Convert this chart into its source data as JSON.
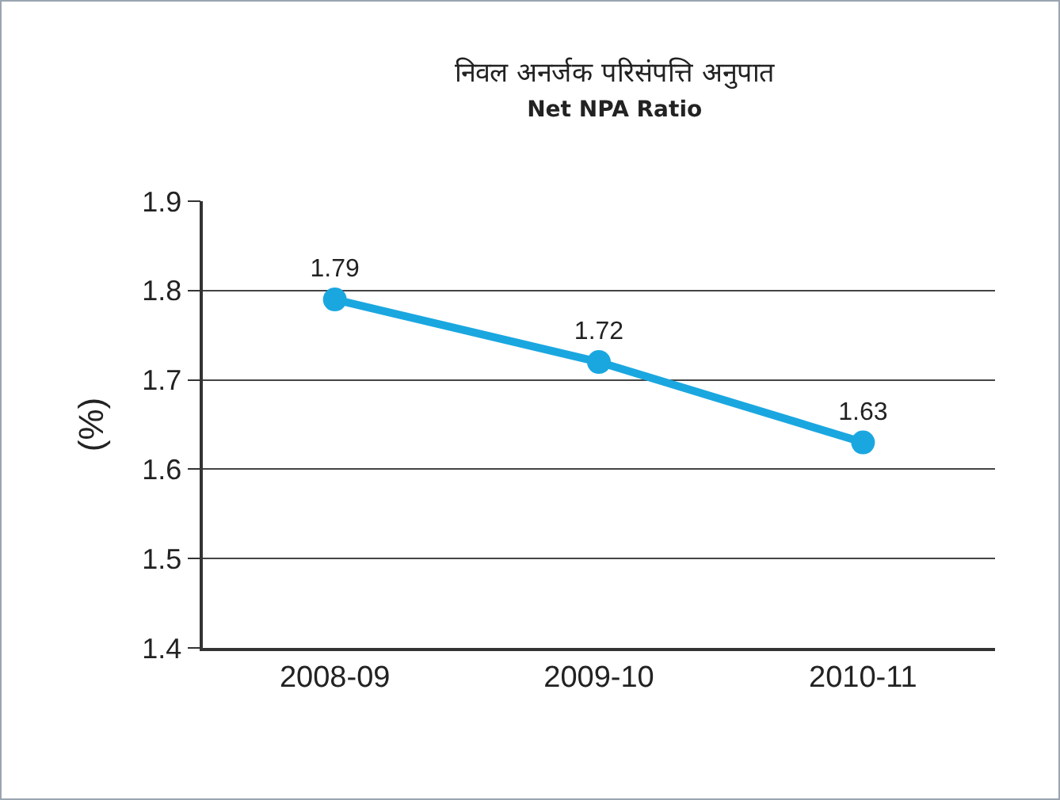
{
  "chart_data": {
    "type": "line",
    "title": "निवल अनर्जक परिसंपत्ति अनुपात",
    "subtitle": "Net NPA Ratio",
    "ylabel": "(%)",
    "categories": [
      "2008-09",
      "2009-10",
      "2010-11"
    ],
    "series": [
      {
        "color": "#1aa7e0",
        "values": [
          1.79,
          1.72,
          1.63
        ]
      }
    ],
    "ylim": [
      1.4,
      1.9
    ],
    "yticks": [
      1.4,
      1.5,
      1.6,
      1.7,
      1.8,
      1.9
    ],
    "grid": "y",
    "legend": false,
    "marker": "circle",
    "line_style": "solid",
    "data_labels": true
  }
}
